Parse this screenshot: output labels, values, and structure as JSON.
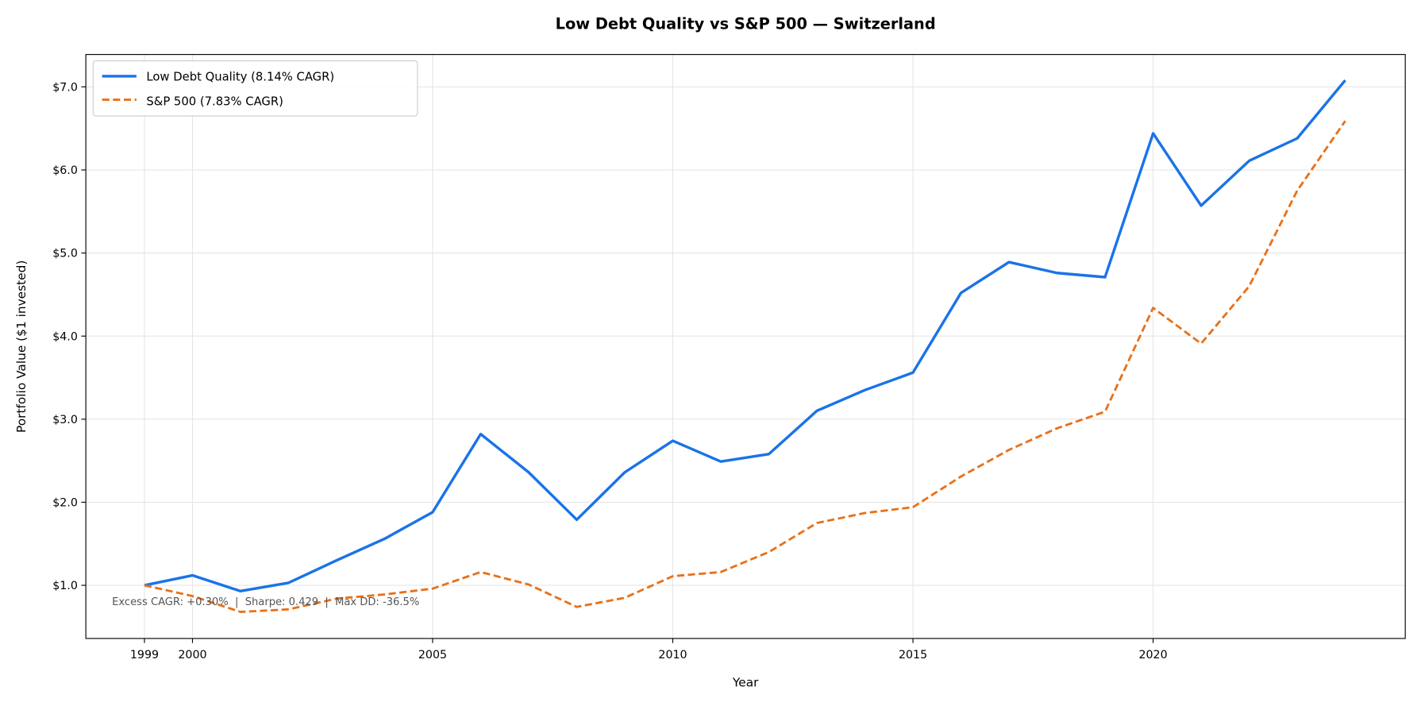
{
  "chart_data": {
    "type": "line",
    "title": "Low Debt Quality vs S&P 500 — Switzerland",
    "xlabel": "Year",
    "ylabel": "Portfolio Value ($1 invested)",
    "x": [
      1999,
      2000,
      2001,
      2002,
      2003,
      2004,
      2005,
      2006,
      2007,
      2008,
      2009,
      2010,
      2011,
      2012,
      2013,
      2014,
      2015,
      2016,
      2017,
      2018,
      2019,
      2020,
      2021,
      2022,
      2023,
      2024
    ],
    "xticks": [
      1999,
      2000,
      2005,
      2010,
      2015,
      2020
    ],
    "xtick_labels": [
      "1999",
      "2000",
      "2005",
      "2010",
      "2015",
      "2020"
    ],
    "yticks": [
      1,
      2,
      3,
      4,
      5,
      6,
      7
    ],
    "ytick_labels": [
      "$1.0",
      "$2.0",
      "$3.0",
      "$4.0",
      "$5.0",
      "$6.0",
      "$7.0"
    ],
    "xlim": [
      1997.78,
      2025.25
    ],
    "ylim": [
      0.36,
      7.39
    ],
    "grid": true,
    "legend_position": "top-left",
    "series": [
      {
        "name": "Low Debt Quality (8.14% CAGR)",
        "color": "#1a73e8",
        "style": "solid",
        "values": [
          1.0,
          1.12,
          0.93,
          1.03,
          1.3,
          1.56,
          1.88,
          2.82,
          2.36,
          1.79,
          2.36,
          2.74,
          2.49,
          2.58,
          3.1,
          3.35,
          3.56,
          4.52,
          4.89,
          4.76,
          4.71,
          6.44,
          5.57,
          6.11,
          6.38,
          7.08
        ]
      },
      {
        "name": "S&P 500 (7.83% CAGR)",
        "color": "#e8711a",
        "style": "dashed",
        "values": [
          1.0,
          0.87,
          0.68,
          0.71,
          0.84,
          0.89,
          0.96,
          1.16,
          1.01,
          0.74,
          0.85,
          1.11,
          1.16,
          1.4,
          1.75,
          1.87,
          1.94,
          2.31,
          2.63,
          2.89,
          3.09,
          4.34,
          3.91,
          4.6,
          5.75,
          6.59
        ]
      }
    ],
    "annotation": "Excess CAGR: +0.30%  |  Sharpe: 0.429  |  Max DD: -36.5%"
  }
}
